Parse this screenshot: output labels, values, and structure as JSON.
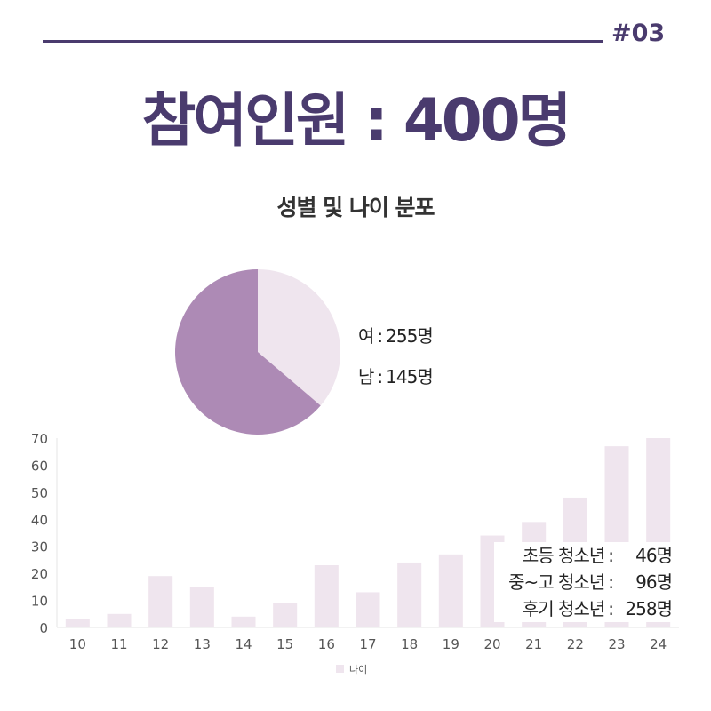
{
  "header": {
    "page_number": "#03"
  },
  "title": "참여인원 : 400명",
  "subtitle": "성별 및 나이 분포",
  "gender": {
    "female": {
      "label": "여",
      "value": "255명"
    },
    "male": {
      "label": "남",
      "value": "145명"
    }
  },
  "groups": [
    {
      "label": "초등 청소년",
      "value": "46명"
    },
    {
      "label": "중~고 청소년",
      "value": "96명"
    },
    {
      "label": "후기 청소년",
      "value": "258명"
    }
  ],
  "colors": {
    "accent": "#4a3b6e",
    "pie_female": "#ad8ab5",
    "pie_male": "#efe5ee",
    "bar": "#efe5ee"
  },
  "chart_data": [
    {
      "type": "pie",
      "categories": [
        "여",
        "남"
      ],
      "values": [
        255,
        145
      ]
    },
    {
      "type": "bar",
      "categories": [
        "10",
        "11",
        "12",
        "13",
        "14",
        "15",
        "16",
        "17",
        "18",
        "19",
        "20",
        "21",
        "22",
        "23",
        "24"
      ],
      "values": [
        3,
        5,
        19,
        15,
        4,
        9,
        23,
        13,
        24,
        27,
        34,
        39,
        48,
        67,
        70
      ],
      "ylim": [
        0,
        70
      ],
      "yticks": [
        0,
        10,
        20,
        30,
        40,
        50,
        60,
        70
      ],
      "legend": "나이",
      "legend_position": "bottom",
      "grid": false
    }
  ]
}
